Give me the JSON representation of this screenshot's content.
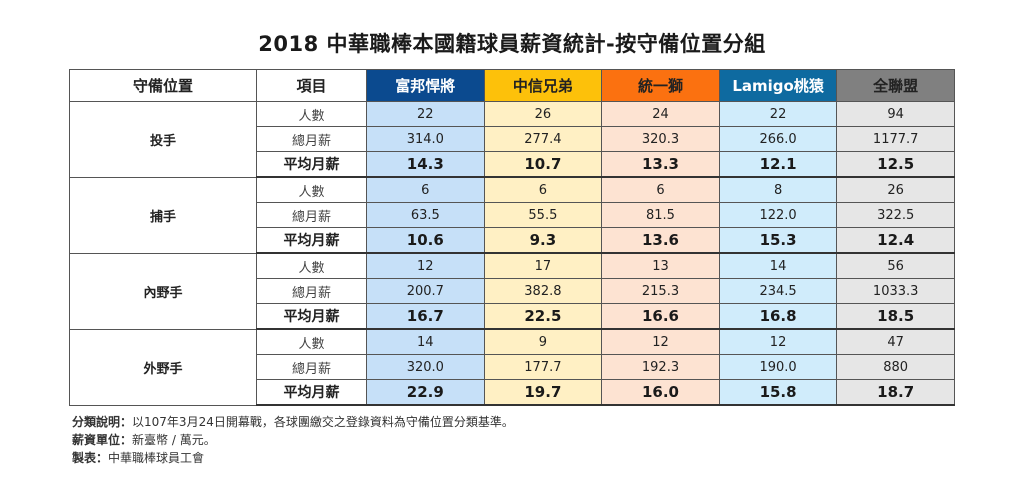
{
  "title": "2018 中華職棒本國籍球員薪資統計-按守備位置分組",
  "headers": {
    "position": "守備位置",
    "item": "項目"
  },
  "teams": [
    {
      "name": "富邦悍將",
      "header_bg": "#0b4a8f",
      "header_fg": "#ffffff",
      "cell_bg": "#c6e0f8"
    },
    {
      "name": "中信兄弟",
      "header_bg": "#fdc10a",
      "header_fg": "#222222",
      "cell_bg": "#fff0c4"
    },
    {
      "name": "統一獅",
      "header_bg": "#fb7110",
      "header_fg": "#222222",
      "cell_bg": "#fde3d2"
    },
    {
      "name": "Lamigo桃猿",
      "header_bg": "#0e6aa0",
      "header_fg": "#ffffff",
      "cell_bg": "#d0ecfb"
    },
    {
      "name": "全聯盟",
      "header_bg": "#808080",
      "header_fg": "#222222",
      "cell_bg": "#e6e6e6"
    }
  ],
  "item_labels": [
    "人數",
    "總月薪",
    "平均月薪"
  ],
  "groups": [
    {
      "position": "投手",
      "rows": [
        [
          "22",
          "26",
          "24",
          "22",
          "94"
        ],
        [
          "314.0",
          "277.4",
          "320.3",
          "266.0",
          "1177.7"
        ],
        [
          "14.3",
          "10.7",
          "13.3",
          "12.1",
          "12.5"
        ]
      ]
    },
    {
      "position": "捕手",
      "rows": [
        [
          "6",
          "6",
          "6",
          "8",
          "26"
        ],
        [
          "63.5",
          "55.5",
          "81.5",
          "122.0",
          "322.5"
        ],
        [
          "10.6",
          "9.3",
          "13.6",
          "15.3",
          "12.4"
        ]
      ]
    },
    {
      "position": "內野手",
      "rows": [
        [
          "12",
          "17",
          "13",
          "14",
          "56"
        ],
        [
          "200.7",
          "382.8",
          "215.3",
          "234.5",
          "1033.3"
        ],
        [
          "16.7",
          "22.5",
          "16.6",
          "16.8",
          "18.5"
        ]
      ]
    },
    {
      "position": "外野手",
      "rows": [
        [
          "14",
          "9",
          "12",
          "12",
          "47"
        ],
        [
          "320.0",
          "177.7",
          "192.3",
          "190.0",
          "880"
        ],
        [
          "22.9",
          "19.7",
          "16.0",
          "15.8",
          "18.7"
        ]
      ]
    }
  ],
  "notes": [
    {
      "label": "分類說明",
      "sep": "：",
      "text": "以107年3月24日開幕戰，各球團繳交之登錄資料為守備位置分類基準。"
    },
    {
      "label": "薪資單位",
      "sep": "：",
      "text": "新臺幣 / 萬元。"
    },
    {
      "label": "製表",
      "sep": "：",
      "text": "中華職棒球員工會"
    }
  ]
}
